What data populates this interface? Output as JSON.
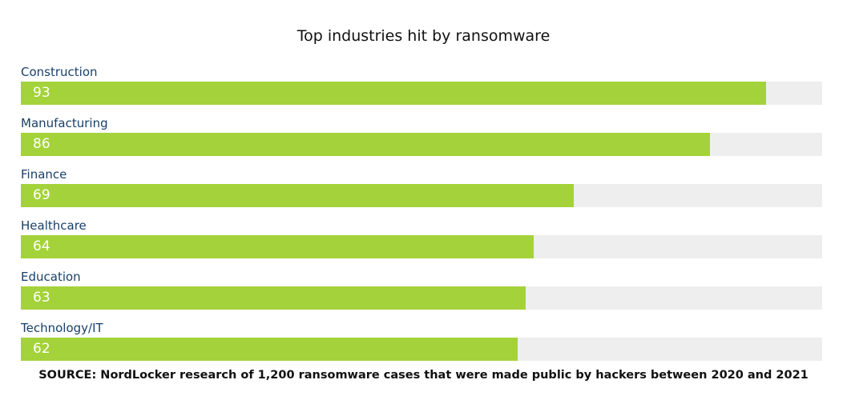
{
  "chart_data": {
    "type": "bar",
    "orientation": "horizontal",
    "title": "Top industries hit by ransomware",
    "categories": [
      "Construction",
      "Manufacturing",
      "Finance",
      "Healthcare",
      "Education",
      "Technology/IT"
    ],
    "values": [
      93,
      86,
      69,
      64,
      63,
      62
    ],
    "xlim": [
      0,
      100
    ],
    "grid": false,
    "legend": "none",
    "data_labels": "inside-bar-left"
  },
  "source_note": "SOURCE: NordLocker research of 1,200 ransomware cases that were made public by hackers between 2020 and 2021",
  "colors": {
    "bar": "#a4d23a",
    "track": "#eeeeee",
    "category_label": "#17406a",
    "value_label": "#ffffff",
    "title": "#111111"
  }
}
